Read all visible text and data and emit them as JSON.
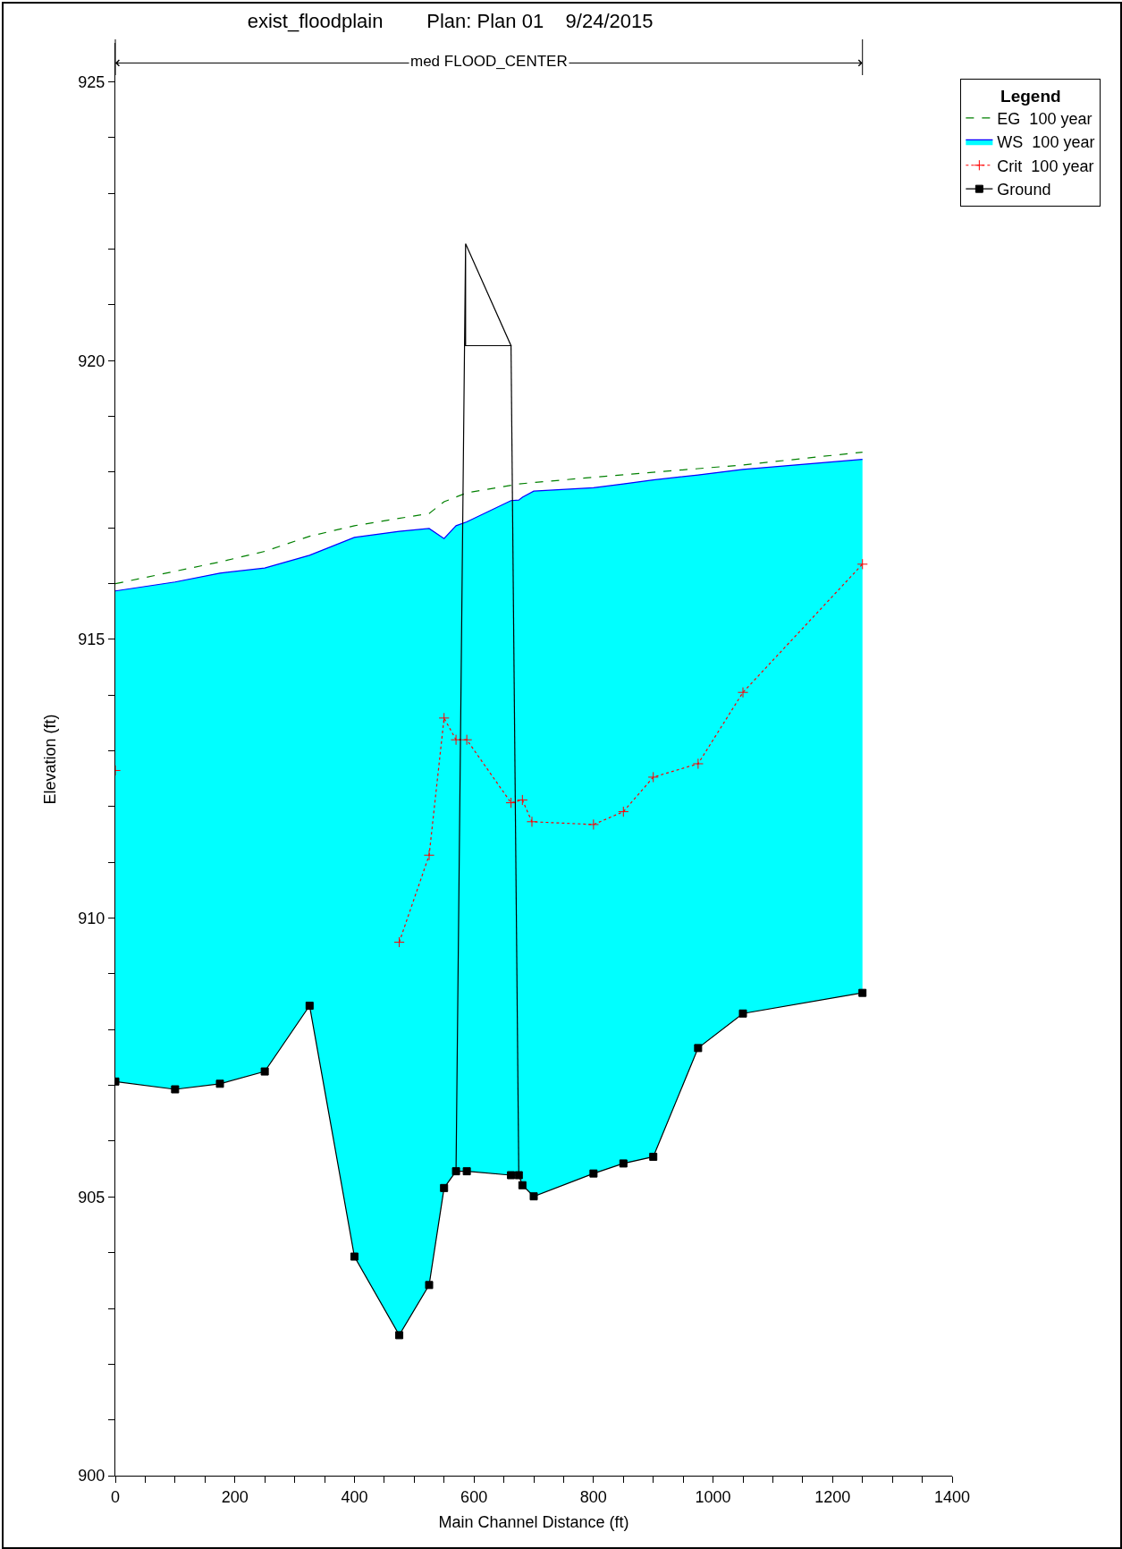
{
  "chart_data": {
    "type": "line",
    "title": "exist_floodplain        Plan: Plan 01    9/24/2015",
    "xlabel": "Main Channel Distance (ft)",
    "ylabel": "Elevation (ft)",
    "legend_title": "Legend",
    "legend": "top right",
    "grid": false,
    "xlim": [
      0,
      1400
    ],
    "ylim": [
      900,
      925.7
    ],
    "xticks": [
      0,
      {
        "value": 50,
        "label": null
      },
      {
        "value": 100,
        "label": null
      },
      {
        "value": 150,
        "label": null
      },
      200,
      {
        "value": 250,
        "label": null
      },
      {
        "value": 300,
        "label": null
      },
      {
        "value": 350,
        "label": null
      },
      400,
      {
        "value": 450,
        "label": null
      },
      {
        "value": 500,
        "label": null
      },
      {
        "value": 550,
        "label": null
      },
      600,
      {
        "value": 650,
        "label": null
      },
      {
        "value": 700,
        "label": null
      },
      {
        "value": 750,
        "label": null
      },
      800,
      {
        "value": 850,
        "label": null
      },
      {
        "value": 900,
        "label": null
      },
      {
        "value": 950,
        "label": null
      },
      1000,
      {
        "value": 1050,
        "label": null
      },
      {
        "value": 1100,
        "label": null
      },
      {
        "value": 1150,
        "label": null
      },
      1200,
      {
        "value": 1250,
        "label": null
      },
      {
        "value": 1300,
        "label": null
      },
      {
        "value": 1350,
        "label": null
      },
      1400
    ],
    "yticks": [
      900,
      {
        "value": 901,
        "label": null
      },
      {
        "value": 902,
        "label": null
      },
      {
        "value": 903,
        "label": null
      },
      {
        "value": 904,
        "label": null
      },
      905,
      {
        "value": 906,
        "label": null
      },
      {
        "value": 907,
        "label": null
      },
      {
        "value": 908,
        "label": null
      },
      {
        "value": 909,
        "label": null
      },
      910,
      {
        "value": 911,
        "label": null
      },
      {
        "value": 912,
        "label": null
      },
      {
        "value": 913,
        "label": null
      },
      {
        "value": 914,
        "label": null
      },
      915,
      {
        "value": 916,
        "label": null
      },
      {
        "value": 917,
        "label": null
      },
      {
        "value": 918,
        "label": null
      },
      {
        "value": 919,
        "label": null
      },
      920,
      {
        "value": 921,
        "label": null
      },
      {
        "value": 922,
        "label": null
      },
      {
        "value": 923,
        "label": null
      },
      {
        "value": 924,
        "label": null
      },
      925
    ],
    "annotations": [
      "med FLOOD_CENTER"
    ],
    "series": [
      {
        "name": "EG  100 year",
        "color": "#008000",
        "line_style": "dashed",
        "marker": "none",
        "x": [
          0,
          175,
          250,
          325,
          400,
          525,
          550,
          588,
          675,
          800,
          1050,
          1250
        ],
        "values": [
          916.0,
          916.39,
          916.58,
          916.85,
          917.04,
          917.26,
          917.47,
          917.63,
          917.79,
          917.91,
          918.13,
          918.36
        ]
      },
      {
        "type": "area",
        "name": "WS  100 year",
        "color": "#0000ff",
        "colors": [
          "#00ffff",
          "#00ffff",
          "#00ffff",
          "#00ffff",
          "#00ffff",
          "#00ffff",
          "#00ffff",
          "#00ffff",
          "#00ffff",
          "#00ffff",
          "#00ffff",
          "#00ffff",
          "#00ffff",
          "#00ffff",
          "#00ffff",
          "#00ffff",
          "#00ffff",
          "#00ffff",
          "#00ffff",
          "#00ffff",
          "#00ffff"
        ],
        "line_style": "solid",
        "marker": "none",
        "x": [
          0,
          100,
          175,
          250,
          325,
          400,
          475,
          525,
          550,
          570,
          588,
          662,
          675,
          681,
          700,
          800,
          850,
          900,
          975,
          1050,
          1250
        ],
        "values": [
          915.87,
          916.03,
          916.19,
          916.28,
          916.51,
          916.83,
          916.94,
          916.99,
          916.81,
          917.04,
          917.11,
          917.49,
          917.5,
          917.55,
          917.66,
          917.72,
          917.79,
          917.86,
          917.95,
          918.05,
          918.23
        ]
      },
      {
        "name": "Crit  100 year",
        "color": "#ff0000",
        "line_style": "dotted",
        "marker": "cross",
        "x": [
          0,
          100,
          475,
          525,
          550,
          570,
          588,
          662,
          681,
          697,
          800,
          850,
          900,
          975,
          1050,
          1250
        ],
        "values": [
          912.65,
          null,
          909.57,
          911.13,
          913.59,
          913.2,
          913.2,
          912.07,
          912.12,
          911.73,
          911.68,
          911.91,
          912.53,
          912.77,
          914.05,
          916.35
        ]
      },
      {
        "name": "Ground",
        "color": "#000000",
        "line_style": "solid",
        "marker": "square",
        "x": [
          0,
          100,
          175,
          250,
          325,
          400,
          475,
          525,
          550,
          570,
          588,
          662,
          675,
          681,
          700,
          800,
          850,
          900,
          975,
          1050,
          1250
        ],
        "values": [
          907.07,
          906.93,
          907.03,
          907.25,
          908.43,
          903.93,
          902.52,
          903.42,
          905.16,
          905.46,
          905.46,
          905.39,
          905.39,
          905.21,
          905.01,
          905.42,
          905.6,
          905.72,
          907.67,
          908.29,
          908.66
        ]
      },
      {
        "color": "#000000",
        "line_style": "solid",
        "marker": "none",
        "x": [
          570,
          586,
          662,
          586,
          586,
          null,
          662,
          675
        ],
        "values": [
          905.46,
          922.1,
          920.27,
          920.27,
          922.1,
          null,
          920.27,
          905.39
        ]
      }
    ]
  }
}
